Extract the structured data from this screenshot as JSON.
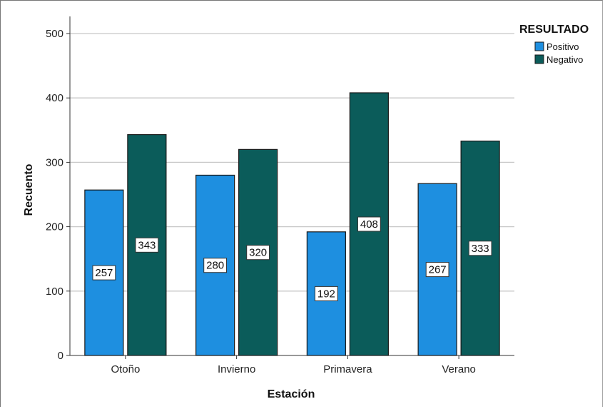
{
  "chart_data": {
    "type": "bar",
    "title": "",
    "xlabel": "Estación",
    "ylabel": "Recuento",
    "categories": [
      "Otoño",
      "Invierno",
      "Primavera",
      "Verano"
    ],
    "series": [
      {
        "name": "Positivo",
        "values": [
          257,
          280,
          192,
          267
        ],
        "color": "#1e8fe0"
      },
      {
        "name": "Negativo",
        "values": [
          343,
          320,
          408,
          333
        ],
        "color": "#0b5c5a"
      }
    ],
    "ylim": [
      0,
      500
    ],
    "yticks": [
      0,
      100,
      200,
      300,
      400,
      500
    ],
    "grid": true,
    "legend": {
      "title": "RESULTADO",
      "position": "top-right"
    },
    "data_labels": true
  }
}
